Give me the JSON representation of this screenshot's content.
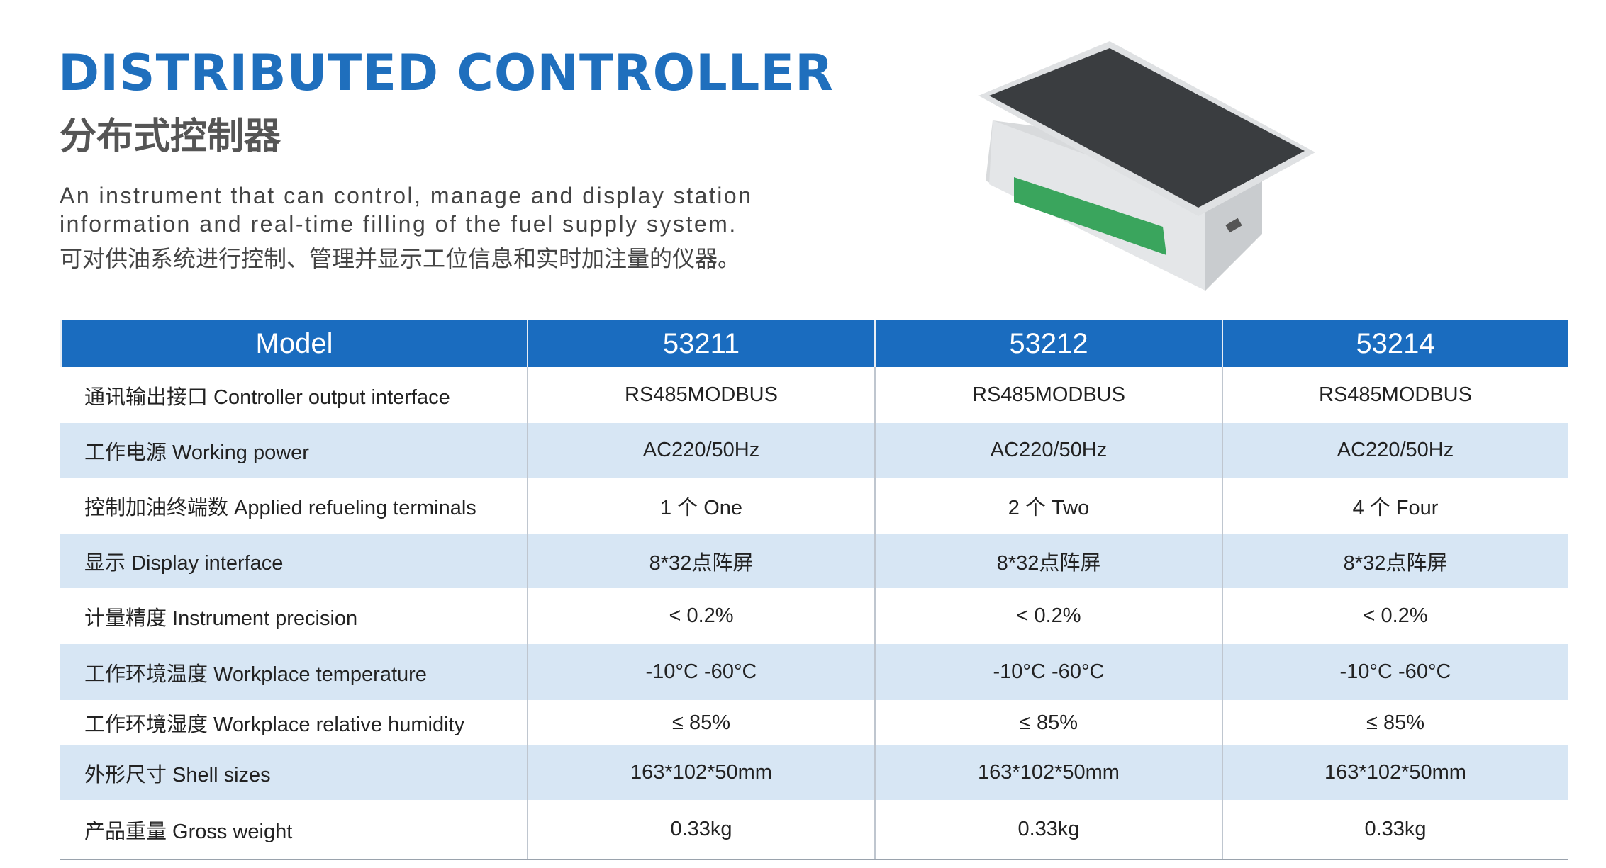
{
  "header": {
    "title": "DISTRIBUTED CONTROLLER",
    "subtitle": "分布式控制器",
    "description": [
      "An instrument that can control, manage and display station",
      "information and real-time filling of the fuel supply system.",
      "可对供油系统进行控制、管理并显示工位信息和实时加注量的仪器。"
    ]
  },
  "table": {
    "columns": [
      "Model",
      "53211",
      "53212",
      "53214"
    ],
    "rows": [
      [
        "通讯输出接口 Controller output interface",
        "RS485MODBUS",
        "RS485MODBUS",
        "RS485MODBUS"
      ],
      [
        "工作电源 Working power",
        "AC220/50Hz",
        "AC220/50Hz",
        "AC220/50Hz"
      ],
      [
        "控制加油终端数 Applied refueling terminals",
        "1 个 One",
        "2 个 Two",
        "4 个 Four"
      ],
      [
        "显示  Display interface",
        "8*32点阵屏",
        "8*32点阵屏",
        "8*32点阵屏"
      ],
      [
        "计量精度 Instrument precision",
        "< 0.2%",
        "< 0.2%",
        "< 0.2%"
      ],
      [
        "工作环境温度 Workplace temperature",
        "-10°C -60°C",
        "-10°C -60°C",
        "-10°C -60°C"
      ],
      [
        "工作环境湿度 Workplace relative humidity",
        "≤ 85%",
        "≤ 85%",
        "≤ 85%"
      ],
      [
        "外形尺寸 Shell sizes",
        "163*102*50mm",
        "163*102*50mm",
        "163*102*50mm"
      ],
      [
        "产品重量 Gross weight",
        "0.33kg",
        "0.33kg",
        "0.33kg"
      ]
    ]
  }
}
